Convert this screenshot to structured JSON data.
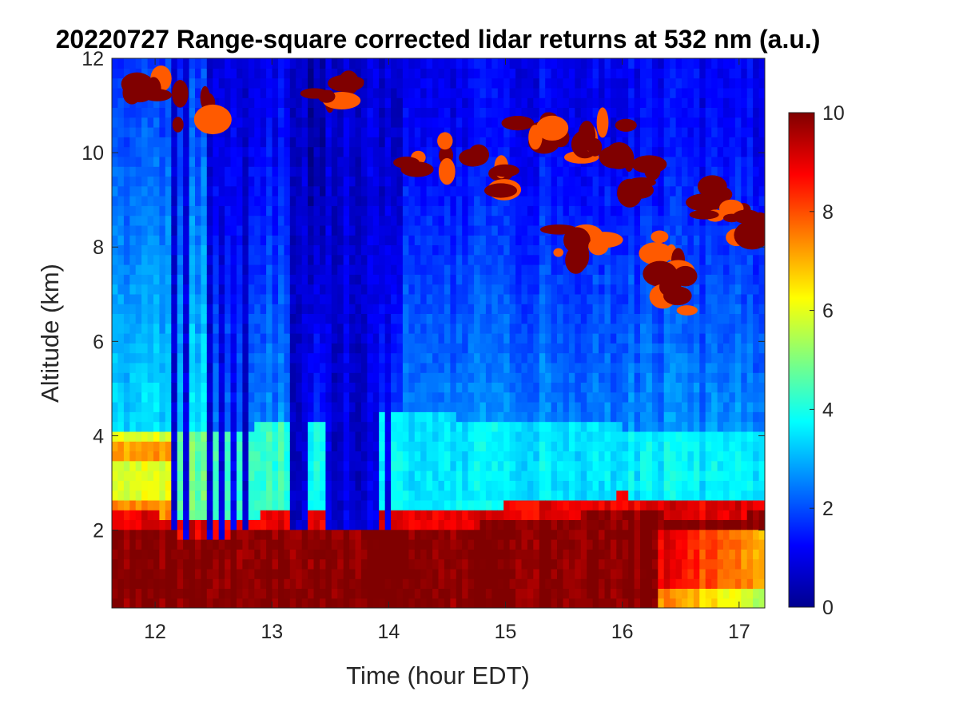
{
  "chart_data": {
    "type": "heatmap",
    "title": "20220727  Range-square corrected lidar returns at 532 nm (a.u.)",
    "xlabel": "Time (hour EDT)",
    "ylabel": "Altitude (km)",
    "xlim": [
      11.63,
      17.22
    ],
    "ylim": [
      0.35,
      12
    ],
    "xticks": [
      12,
      13,
      14,
      15,
      16,
      17
    ],
    "yticks": [
      2,
      4,
      6,
      8,
      10,
      12
    ],
    "colorbar": {
      "colormap": "jet",
      "clim": [
        0,
        10
      ],
      "ticks": [
        0,
        2,
        4,
        6,
        8,
        10
      ]
    },
    "features": {
      "boundary_layer_top_km": [
        [
          11.63,
          2.0
        ],
        [
          12.0,
          2.0
        ],
        [
          12.2,
          1.9
        ],
        [
          12.6,
          1.9
        ],
        [
          13.0,
          2.0
        ],
        [
          13.5,
          2.1
        ],
        [
          14.0,
          2.1
        ],
        [
          14.5,
          2.0
        ],
        [
          15.0,
          2.2
        ],
        [
          15.5,
          2.3
        ],
        [
          16.0,
          2.4
        ],
        [
          16.5,
          2.3
        ],
        [
          17.0,
          2.3
        ],
        [
          17.22,
          2.4
        ]
      ],
      "residual_layer_top_km": [
        [
          11.63,
          4.1
        ],
        [
          12.1,
          4.0
        ],
        [
          14.0,
          4.5
        ],
        [
          14.6,
          4.4
        ],
        [
          15.5,
          4.3
        ],
        [
          16.0,
          4.2
        ],
        [
          16.5,
          4.1
        ],
        [
          17.22,
          4.0
        ]
      ],
      "low_signal_columns_hours": [
        [
          12.15,
          12.19
        ],
        [
          12.23,
          12.27
        ],
        [
          12.43,
          12.5
        ],
        [
          12.55,
          12.6
        ],
        [
          12.66,
          12.7
        ],
        [
          12.76,
          12.8
        ],
        [
          13.17,
          13.32
        ],
        [
          13.48,
          13.9
        ],
        [
          13.95,
          14.02
        ]
      ],
      "cloud_patches": [
        {
          "x": 12.0,
          "y": 11.5
        },
        {
          "x": 12.35,
          "y": 11.0
        },
        {
          "x": 13.5,
          "y": 11.5
        },
        {
          "x": 14.35,
          "y": 9.9
        },
        {
          "x": 14.8,
          "y": 9.6
        },
        {
          "x": 15.3,
          "y": 10.6
        },
        {
          "x": 15.65,
          "y": 8.1
        },
        {
          "x": 15.85,
          "y": 10.3
        },
        {
          "x": 16.1,
          "y": 9.5
        },
        {
          "x": 16.4,
          "y": 7.8
        },
        {
          "x": 16.5,
          "y": 7.0
        },
        {
          "x": 16.9,
          "y": 9.0
        },
        {
          "x": 17.1,
          "y": 8.3
        }
      ]
    }
  }
}
